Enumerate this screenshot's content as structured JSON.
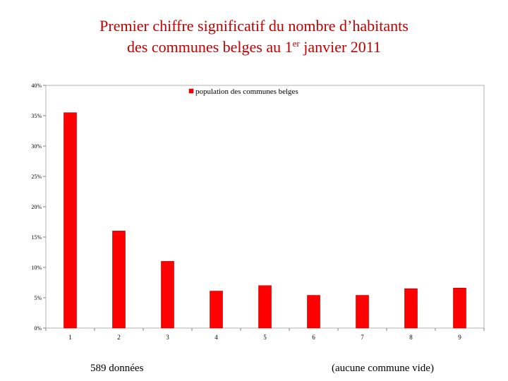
{
  "title": {
    "line1": "Premier chiffre significatif du nombre d’habitants",
    "line2_before": "des communes belges au 1",
    "line2_sup": "er",
    "line2_after": " janvier 2011"
  },
  "footer": {
    "left": "589 données",
    "right": "(aucune commune vide)"
  },
  "colors": {
    "bar": "#ff0000",
    "bar_edge": "#b00000",
    "title": "#c00000"
  },
  "chart_data": {
    "type": "bar",
    "categories": [
      "1",
      "2",
      "3",
      "4",
      "5",
      "6",
      "7",
      "8",
      "9"
    ],
    "series": [
      {
        "name": "population des communes belges",
        "values": [
          0.355,
          0.16,
          0.11,
          0.061,
          0.07,
          0.054,
          0.054,
          0.065,
          0.066
        ]
      }
    ],
    "ylim": [
      0,
      0.4
    ],
    "yticks": [
      {
        "value": 0.4,
        "label": "40%"
      },
      {
        "value": 0.35,
        "label": "35%"
      },
      {
        "value": 0.3,
        "label": "30%"
      },
      {
        "value": 0.25,
        "label": "25%"
      },
      {
        "value": 0.2,
        "label": "20%"
      },
      {
        "value": 0.15,
        "label": "15%"
      },
      {
        "value": 0.1,
        "label": "10%"
      },
      {
        "value": 0.05,
        "label": "5%"
      },
      {
        "value": 0.0,
        "label": "0%"
      }
    ],
    "legend_position": "top-center",
    "grid": false
  }
}
